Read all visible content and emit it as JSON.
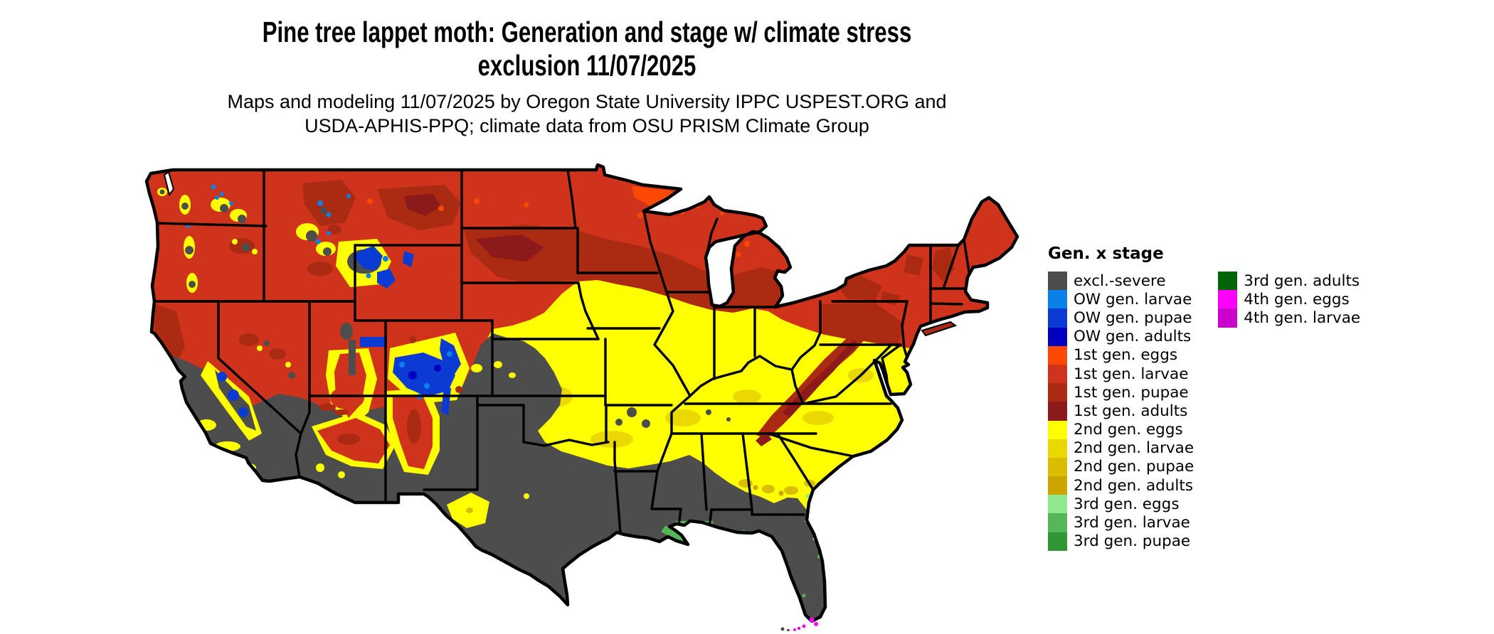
{
  "header": {
    "title_line1": "Pine tree lappet moth: Generation and stage w/ climate stress",
    "title_line2": "exclusion 11/07/2025",
    "subtitle_line1": "Maps and modeling 11/07/2025 by Oregon State University IPPC USPEST.ORG and",
    "subtitle_line2": "USDA-APHIS-PPQ; climate data from OSU PRISM Climate Group"
  },
  "legend": {
    "title": "Gen. x stage",
    "items_col1": [
      {
        "label": "excl.-severe",
        "color": "#4D4D4D"
      },
      {
        "label": "OW gen. larvae",
        "color": "#0981E8"
      },
      {
        "label": "OW gen. pupae",
        "color": "#0B3BD3"
      },
      {
        "label": "OW gen. adults",
        "color": "#0000BE"
      },
      {
        "label": "1st gen. eggs",
        "color": "#FB4903"
      },
      {
        "label": "1st gen. larvae",
        "color": "#D0331B"
      },
      {
        "label": "1st gen. pupae",
        "color": "#AA2A12"
      },
      {
        "label": "1st gen. adults",
        "color": "#8C1A1A"
      },
      {
        "label": "2nd gen. eggs",
        "color": "#FFFF00"
      },
      {
        "label": "2nd gen. larvae",
        "color": "#EBD800"
      },
      {
        "label": "2nd gen. pupae",
        "color": "#D9BE00"
      },
      {
        "label": "2nd gen. adults",
        "color": "#CDA400"
      },
      {
        "label": "3rd gen. eggs",
        "color": "#8FE98F"
      },
      {
        "label": "3rd gen. larvae",
        "color": "#55B755"
      },
      {
        "label": "3rd gen. pupae",
        "color": "#2F9832"
      }
    ],
    "items_col2": [
      {
        "label": "3rd gen. adults",
        "color": "#016409"
      },
      {
        "label": "4th gen. eggs",
        "color": "#FF00FF"
      },
      {
        "label": "4th gen. larvae",
        "color": "#CC00CC"
      }
    ]
  },
  "map": {
    "depicts": "Contiguous United States raster map colored by pest generation and life stage, with state boundaries"
  }
}
